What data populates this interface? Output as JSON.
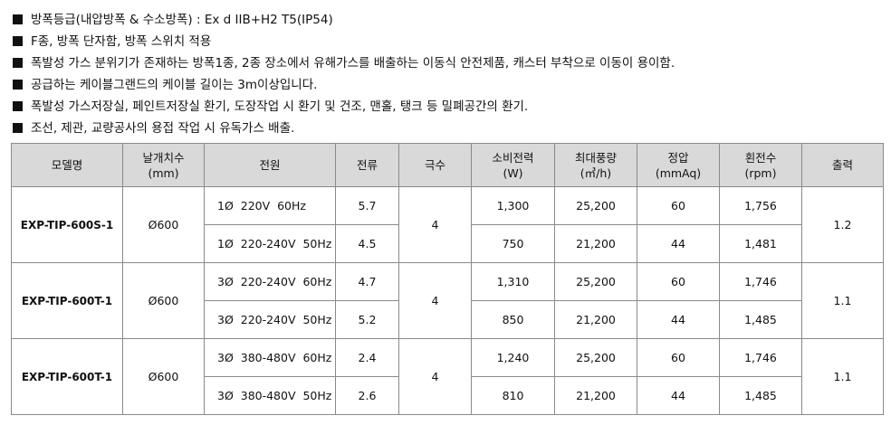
{
  "bullets": [
    "방폭등급(내압방폭 & 수소방폭) : Ex d IIB+H2 T5(IP54)",
    "F종, 방폭 단자함, 방폭 스위치 적용",
    "폭발성 가스 분위기가 존재하는 방폭1종, 2종 장소에서 유해가스를 배출하는 이동식 안전제품, 캐스터 부착으로 이동이 용이함.",
    "공급하는 케이블그랜드의 케이블 길이는 3m이상입니다.",
    "폭발성 가스저장실, 페인트저장실 환기, 도장작업 시 환기 및 건조, 맨홀, 탱크 등 밀폐공간의 환기.",
    "조선, 제관, 교량공사의 용접 작업 시 유독가스 배출."
  ],
  "table": {
    "header": [
      {
        "text": "모델명"
      },
      {
        "text": "날개치수",
        "unit": "(mm)"
      },
      {
        "text": "전원"
      },
      {
        "text": "전류"
      },
      {
        "text": "극수"
      },
      {
        "text": "소비전력",
        "unit": "(W)"
      },
      {
        "text": "최대풍량",
        "unit": "(㎥/h)"
      },
      {
        "text": "정압",
        "unit": "(mmAq)"
      },
      {
        "text": "횐전수",
        "unit": "(rpm)"
      },
      {
        "text": "출력"
      }
    ],
    "groups": [
      {
        "model": "EXP-TIP-600S-1",
        "blade": "Ø600",
        "poles": "4",
        "output": "1.2",
        "rows": [
          {
            "power": "1Ø  220V  60Hz",
            "current": "5.7",
            "consumption": "1,300",
            "airflow": "25,200",
            "pressure": "60",
            "rpm": "1,756"
          },
          {
            "power": "1Ø  220-240V  50Hz",
            "current": "4.5",
            "consumption": "750",
            "airflow": "21,200",
            "pressure": "44",
            "rpm": "1,481"
          }
        ]
      },
      {
        "model": "EXP-TIP-600T-1",
        "blade": "Ø600",
        "poles": "4",
        "output": "1.1",
        "rows": [
          {
            "power": "3Ø  220-240V  60Hz",
            "current": "4.7",
            "consumption": "1,310",
            "airflow": "25,200",
            "pressure": "60",
            "rpm": "1,746"
          },
          {
            "power": "3Ø  220-240V  50Hz",
            "current": "5.2",
            "consumption": "850",
            "airflow": "21,200",
            "pressure": "44",
            "rpm": "1,485"
          }
        ]
      },
      {
        "model": "EXP-TIP-600T-1",
        "blade": "Ø600",
        "poles": "4",
        "output": "1.1",
        "rows": [
          {
            "power": "3Ø  380-480V  60Hz",
            "current": "2.4",
            "consumption": "1,240",
            "airflow": "25,200",
            "pressure": "60",
            "rpm": "1,746"
          },
          {
            "power": "3Ø  380-480V  50Hz",
            "current": "2.6",
            "consumption": "810",
            "airflow": "21,200",
            "pressure": "44",
            "rpm": "1,485"
          }
        ]
      }
    ]
  }
}
